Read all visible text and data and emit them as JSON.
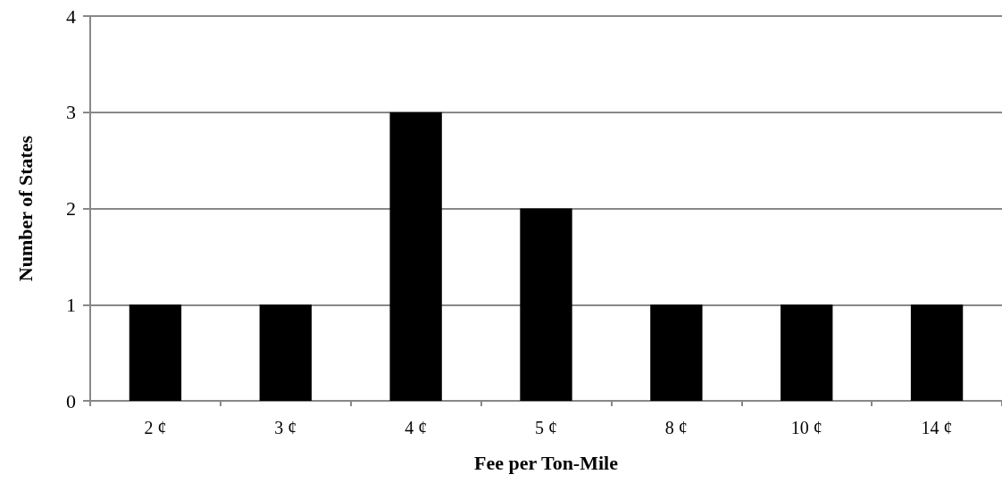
{
  "chart_data": {
    "type": "bar",
    "xlabel": "Fee per Ton-Mile",
    "ylabel": "Number of States",
    "categories": [
      "2 ¢",
      "3 ¢",
      "4 ¢",
      "5 ¢",
      "8 ¢",
      "10 ¢",
      "14 ¢"
    ],
    "values": [
      1,
      1,
      3,
      2,
      1,
      1,
      1
    ],
    "color": "#000000",
    "ylim": [
      0,
      4
    ],
    "yticks": [
      0,
      1,
      2,
      3,
      4
    ],
    "grid": "y"
  }
}
